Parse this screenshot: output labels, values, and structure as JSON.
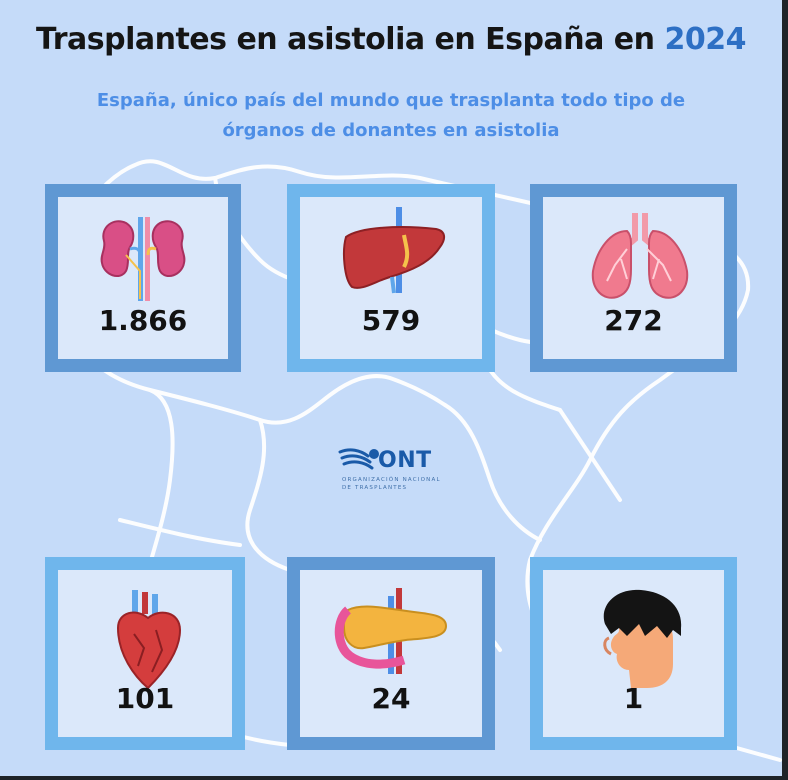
{
  "title": {
    "text": "Trasplantes en asistolia en España en",
    "year": "2024"
  },
  "subtitle": "España, único país del mundo que trasplanta todo tipo de órganos de donantes en asistolia",
  "colors": {
    "background": "#c5dbf9",
    "frame_dark": "#5f98d3",
    "frame_light": "#6fb6ec",
    "accent": "#2d6fc4",
    "subtitle": "#4d8ee6"
  },
  "organs": [
    {
      "icon": "kidneys-icon",
      "value": "1.866"
    },
    {
      "icon": "liver-icon",
      "value": "579"
    },
    {
      "icon": "lungs-icon",
      "value": "272"
    },
    {
      "icon": "heart-icon",
      "value": "101"
    },
    {
      "icon": "pancreas-icon",
      "value": "24"
    },
    {
      "icon": "head-icon",
      "value": "1"
    }
  ],
  "logo": {
    "name": "ONT",
    "line1": "ORGANIZACIÓN NACIONAL",
    "line2": "DE TRASPLANTES"
  }
}
